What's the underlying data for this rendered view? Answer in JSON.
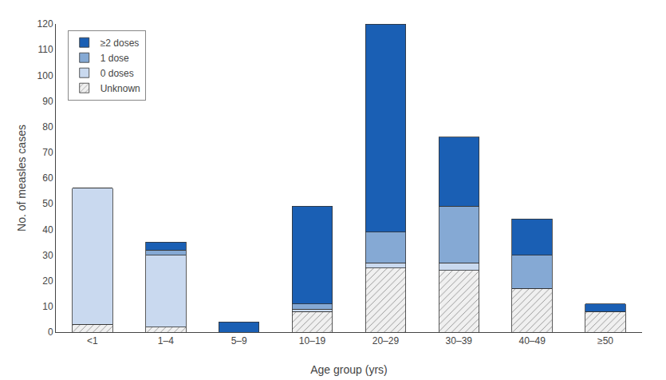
{
  "chart_data": {
    "type": "bar",
    "stacked": true,
    "categories": [
      "<1",
      "1–4",
      "5–9",
      "10–19",
      "20–29",
      "30–39",
      "40–49",
      "≥50"
    ],
    "series": [
      {
        "name": "Unknown",
        "color": "#f0f0f0",
        "values": [
          3,
          2,
          0,
          8,
          25,
          24,
          17,
          8
        ]
      },
      {
        "name": "0 doses",
        "color": "#c9d9ef",
        "values": [
          53,
          28,
          0,
          1,
          2,
          3,
          0,
          0
        ]
      },
      {
        "name": "1 dose",
        "color": "#85a9d4",
        "values": [
          0,
          2,
          0,
          2,
          12,
          22,
          13,
          0
        ]
      },
      {
        "name": "≥2 doses",
        "color": "#1a5fb4",
        "values": [
          0,
          3,
          4,
          38,
          81,
          27,
          14,
          3
        ]
      }
    ],
    "xlabel": "Age group (yrs)",
    "ylabel": "No. of measles cases",
    "ylim": [
      0,
      120
    ],
    "yticks": [
      0,
      10,
      20,
      30,
      40,
      50,
      60,
      70,
      80,
      90,
      100,
      110,
      120
    ],
    "grid": false,
    "legend": "upper left"
  }
}
